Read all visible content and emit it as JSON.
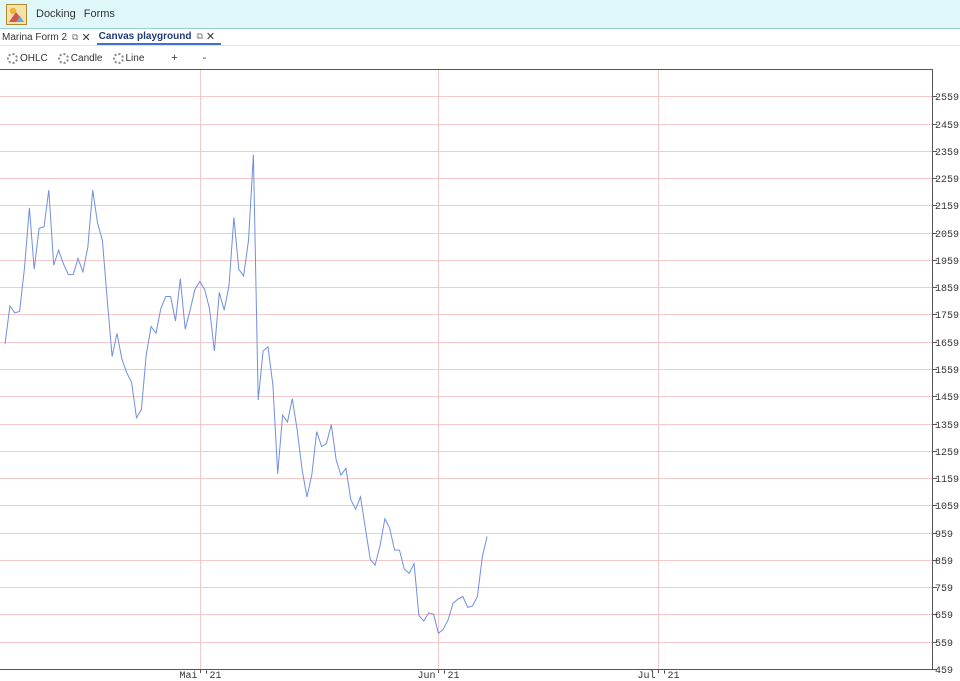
{
  "menubar": {
    "items": [
      "Docking",
      "Forms"
    ]
  },
  "tabs": [
    {
      "label": "Marina Form 2",
      "active": false
    },
    {
      "label": "Canvas playground",
      "active": true
    }
  ],
  "toolbar": {
    "ohlc_label": "OHLC",
    "candle_label": "Candle",
    "line_label": "Line",
    "plus_label": "+",
    "minus_label": "-"
  },
  "colors": {
    "line": "#6f8fe0",
    "grid": "#f6c9c9",
    "menubar_bg": "#e0f7fa"
  },
  "chart_data": {
    "type": "line",
    "title": "",
    "xlabel": "",
    "ylabel": "",
    "ylim": [
      459,
      2659
    ],
    "y_ticks": [
      2559,
      2459,
      2359,
      2259,
      2159,
      2059,
      1959,
      1859,
      1759,
      1659,
      1559,
      1459,
      1359,
      1259,
      1159,
      1059,
      959,
      859,
      759,
      659,
      559,
      459
    ],
    "x_ticks": [
      {
        "label": "Mai '21",
        "index": 40
      },
      {
        "label": "Jun '21",
        "index": 89
      },
      {
        "label": "Jul '21",
        "index": 134
      }
    ],
    "grid": true,
    "series": [
      {
        "values": [
          1650,
          1790,
          1765,
          1770,
          1930,
          2150,
          1925,
          2075,
          2080,
          2215,
          1940,
          1995,
          1945,
          1905,
          1905,
          1965,
          1915,
          2005,
          2215,
          2095,
          2030,
          1810,
          1605,
          1690,
          1595,
          1545,
          1510,
          1380,
          1410,
          1610,
          1715,
          1690,
          1780,
          1825,
          1825,
          1735,
          1890,
          1705,
          1775,
          1850,
          1880,
          1850,
          1780,
          1625,
          1840,
          1775,
          1865,
          2115,
          1925,
          1900,
          2030,
          2345,
          1445,
          1625,
          1640,
          1500,
          1175,
          1390,
          1365,
          1450,
          1335,
          1190,
          1090,
          1170,
          1330,
          1275,
          1285,
          1355,
          1225,
          1170,
          1195,
          1080,
          1045,
          1090,
          975,
          860,
          840,
          910,
          1010,
          975,
          895,
          895,
          825,
          810,
          845,
          655,
          635,
          665,
          660,
          590,
          605,
          640,
          700,
          715,
          725,
          685,
          690,
          725,
          870,
          945
        ]
      }
    ]
  }
}
